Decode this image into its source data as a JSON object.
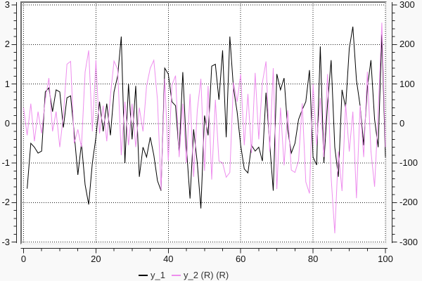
{
  "window": {
    "background": "#f9f9f9",
    "canvas_background": "#ffffff"
  },
  "chart_data": {
    "type": "line",
    "title": "",
    "xlabel": "",
    "ylabel": "",
    "grid": {
      "visible": true,
      "style": "dotted",
      "color": "#000000"
    },
    "x_axis": {
      "min": 0,
      "max": 100,
      "major_step": 20,
      "minor_step": 5,
      "tick_labels": [
        "0",
        "20",
        "40",
        "60",
        "80",
        "100"
      ]
    },
    "y_axis_left": {
      "min": -3,
      "max": 3,
      "major_step": 1,
      "minor_step": 0.2,
      "tick_labels": [
        "3",
        "2",
        "1",
        "0",
        "-1",
        "-2",
        "-3"
      ]
    },
    "y_axis_right": {
      "min": -300,
      "max": 300,
      "major_step": 100,
      "minor_step": 20,
      "tick_labels": [
        "300",
        "200",
        "100",
        "0",
        "-100",
        "-200",
        "-300"
      ]
    },
    "legend": {
      "position": "bottom",
      "items": [
        {
          "label": "y_1",
          "color": "#000000"
        },
        {
          "label": "y_2 (R) (R)",
          "color": "#ee8eee"
        }
      ]
    },
    "series": [
      {
        "name": "y_1",
        "axis": "left",
        "color": "#000000",
        "x_start": 1,
        "x_step": 1,
        "values": [
          -1.65,
          -0.5,
          -0.6,
          -0.75,
          -0.7,
          0.8,
          0.9,
          0.3,
          0.85,
          0.8,
          -0.1,
          0.65,
          0.7,
          -0.25,
          -1.3,
          -0.5,
          -1.55,
          -2.05,
          -1.0,
          -0.35,
          0.55,
          -0.2,
          0.5,
          -0.3,
          0.8,
          1.2,
          2.2,
          -1.0,
          1.0,
          -0.4,
          0.95,
          -1.35,
          -0.6,
          -0.85,
          -0.35,
          -0.8,
          -1.45,
          -1.7,
          1.4,
          1.25,
          0.55,
          0.45,
          -0.75,
          1.3,
          -0.6,
          -1.9,
          -0.15,
          -1.0,
          -2.15,
          0.2,
          -0.3,
          1.45,
          1.5,
          0.6,
          1.85,
          -0.35,
          2.2,
          0.9,
          0.3,
          -0.55,
          -1.15,
          -1.25,
          -0.55,
          -0.7,
          -0.6,
          -0.95,
          0.78,
          -0.5,
          -1.7,
          1.25,
          0.85,
          1.15,
          -0.15,
          -0.75,
          -0.5,
          0.1,
          0.35,
          0.55,
          1.35,
          -0.85,
          -1.05,
          1.95,
          -1.0,
          0.5,
          1.6,
          -0.6,
          -1.35,
          0.85,
          0.4,
          1.9,
          2.45,
          1.1,
          0.45,
          -0.55,
          0.9,
          1.6,
          0.1,
          -0.6,
          2.25,
          -0.85
        ]
      },
      {
        "name": "y_2 (R) (R)",
        "axis": "right",
        "color": "#ee8eee",
        "x_start": 0,
        "x_step": 1,
        "values": [
          40,
          -30,
          50,
          -45,
          30,
          -25,
          60,
          115,
          -20,
          30,
          -60,
          20,
          150,
          157,
          -50,
          -15,
          -60,
          130,
          185,
          -20,
          160,
          -25,
          45,
          -45,
          70,
          158,
          137,
          -80,
          55,
          -55,
          50,
          -60,
          40,
          -20,
          95,
          140,
          160,
          60,
          -168,
          113,
          -95,
          97,
          121,
          -85,
          50,
          -100,
          75,
          -135,
          33,
          113,
          -120,
          95,
          -142,
          60,
          -95,
          -100,
          -136,
          -124,
          104,
          55,
          125,
          -55,
          75,
          -75,
          128,
          -40,
          104,
          157,
          -70,
          140,
          -166,
          40,
          -106,
          33,
          -118,
          -124,
          -94,
          51,
          -148,
          -177,
          100,
          -55,
          65,
          -85,
          125,
          -136,
          -278,
          -71,
          -171,
          49,
          -71,
          30,
          -189,
          45,
          -85,
          131,
          -70,
          -160,
          30,
          255,
          -60
        ]
      }
    ]
  }
}
